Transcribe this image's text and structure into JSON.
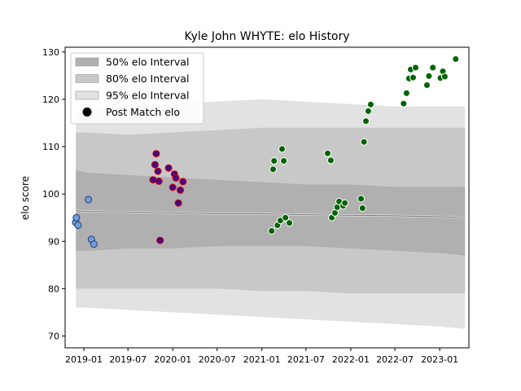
{
  "chart_data": {
    "type": "scatter",
    "title": "Kyle John WHYTE: elo History",
    "xlabel": "",
    "ylabel": "elo score",
    "xlim": [
      "2018-10-16",
      "2023-05-01"
    ],
    "ylim": [
      67.5,
      131
    ],
    "xticks": [
      "2019-01",
      "2019-07",
      "2020-01",
      "2020-07",
      "2021-01",
      "2021-07",
      "2022-01",
      "2022-07",
      "2023-01"
    ],
    "yticks": [
      70,
      80,
      90,
      100,
      110,
      120,
      130
    ],
    "grid": false,
    "legend": {
      "placement": "upper-left",
      "entries": [
        {
          "label": "50% elo Interval",
          "color": "#b0b0b0"
        },
        {
          "label": "80% elo Interval",
          "color": "#c8c8c8"
        },
        {
          "label": "95% elo Interval",
          "color": "#e2e2e2"
        },
        {
          "label": "Post Match elo",
          "color": "#000000"
        }
      ]
    },
    "intervals": {
      "x": [
        "2018-11-29",
        "2019-01-15",
        "2019-07-01",
        "2020-01-01",
        "2020-07-01",
        "2021-01-01",
        "2021-07-01",
        "2022-01-01",
        "2022-07-01",
        "2023-01-01",
        "2023-04-15"
      ],
      "mean": [
        96.5,
        96.3,
        96.2,
        96.0,
        95.8,
        95.8,
        95.6,
        95.5,
        95.4,
        95.2,
        95.0
      ],
      "p50": [
        [
          88,
          105
        ],
        [
          88,
          104.5
        ],
        [
          88.5,
          104
        ],
        [
          88.5,
          103.5
        ],
        [
          89,
          103
        ],
        [
          89,
          102.5
        ],
        [
          89,
          102
        ],
        [
          88.5,
          102
        ],
        [
          88,
          101.5
        ],
        [
          87.5,
          101.5
        ],
        [
          87,
          101.5
        ]
      ],
      "p80": [
        [
          80,
          113
        ],
        [
          80,
          113
        ],
        [
          80,
          112.5
        ],
        [
          80,
          113
        ],
        [
          80,
          113.5
        ],
        [
          79.5,
          114
        ],
        [
          79.5,
          114
        ],
        [
          79,
          114
        ],
        [
          79,
          114
        ],
        [
          79,
          114
        ],
        [
          79,
          114
        ]
      ],
      "p95": [
        [
          76,
          117
        ],
        [
          76,
          117.5
        ],
        [
          75.5,
          118.5
        ],
        [
          75,
          119
        ],
        [
          74.5,
          119.5
        ],
        [
          74,
          120
        ],
        [
          73.5,
          119.5
        ],
        [
          73,
          119
        ],
        [
          72.5,
          118.5
        ],
        [
          72,
          118.5
        ],
        [
          71.5,
          118.5
        ]
      ]
    },
    "series": [
      {
        "fill": "#6fa0dc",
        "stroke": "#1f3b73",
        "points": [
          [
            "2018-11-28",
            94.0
          ],
          [
            "2018-12-01",
            95.0
          ],
          [
            "2018-12-08",
            93.4
          ],
          [
            "2019-01-20",
            98.8
          ],
          [
            "2019-02-01",
            90.4
          ],
          [
            "2019-02-11",
            89.4
          ]
        ]
      },
      {
        "fill": "#4b0082",
        "stroke": "#cc0000",
        "points": [
          [
            "2019-10-12",
            103.0
          ],
          [
            "2019-10-20",
            106.2
          ],
          [
            "2019-10-25",
            108.5
          ],
          [
            "2019-11-01",
            104.8
          ],
          [
            "2019-11-05",
            102.7
          ],
          [
            "2019-11-10",
            90.2
          ],
          [
            "2019-12-15",
            105.5
          ],
          [
            "2020-01-01",
            101.4
          ],
          [
            "2020-01-08",
            104.2
          ],
          [
            "2020-01-14",
            103.4
          ],
          [
            "2020-01-24",
            98.1
          ],
          [
            "2020-02-01",
            100.8
          ],
          [
            "2020-02-12",
            102.6
          ]
        ]
      },
      {
        "fill": "#006400",
        "stroke": "#ffffff",
        "points": [
          [
            "2021-02-10",
            92.2
          ],
          [
            "2021-02-16",
            105.2
          ],
          [
            "2021-02-20",
            107.0
          ],
          [
            "2021-03-06",
            93.4
          ],
          [
            "2021-03-18",
            94.4
          ],
          [
            "2021-03-25",
            109.5
          ],
          [
            "2021-04-01",
            107.0
          ],
          [
            "2021-04-08",
            95.0
          ],
          [
            "2021-04-24",
            93.9
          ],
          [
            "2021-09-28",
            108.6
          ],
          [
            "2021-10-11",
            107.1
          ],
          [
            "2021-10-15",
            95.0
          ],
          [
            "2021-10-28",
            96.0
          ],
          [
            "2021-11-06",
            97.2
          ],
          [
            "2021-11-14",
            98.4
          ],
          [
            "2021-12-01",
            97.5
          ],
          [
            "2021-12-08",
            98.1
          ],
          [
            "2022-02-12",
            99.0
          ],
          [
            "2022-02-18",
            97.0
          ],
          [
            "2022-02-24",
            111.0
          ],
          [
            "2022-03-04",
            115.4
          ],
          [
            "2022-03-14",
            117.5
          ],
          [
            "2022-03-24",
            118.9
          ],
          [
            "2022-08-06",
            119.1
          ],
          [
            "2022-08-18",
            121.3
          ],
          [
            "2022-08-28",
            124.4
          ],
          [
            "2022-09-04",
            126.3
          ],
          [
            "2022-09-14",
            124.6
          ],
          [
            "2022-09-24",
            126.7
          ],
          [
            "2022-11-10",
            123.0
          ],
          [
            "2022-11-18",
            124.9
          ],
          [
            "2022-12-04",
            126.7
          ],
          [
            "2023-01-04",
            124.5
          ],
          [
            "2023-01-14",
            125.9
          ],
          [
            "2023-01-22",
            124.8
          ],
          [
            "2023-03-08",
            128.5
          ]
        ]
      }
    ]
  }
}
